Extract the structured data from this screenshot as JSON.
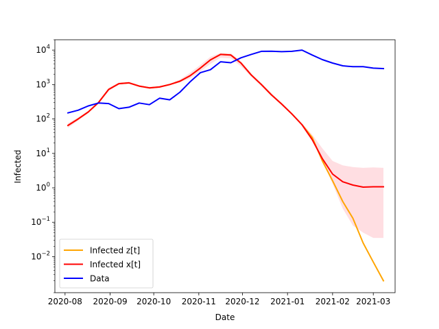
{
  "chart_data": {
    "type": "line",
    "title": "",
    "xlabel": "Date",
    "ylabel": "Infected",
    "yscale": "log",
    "ylim": [
      0.0009,
      20000
    ],
    "xlim": [
      "2020-07-25",
      "2021-03-16"
    ],
    "grid": false,
    "legend_position": "lower-left",
    "x_ticks": [
      {
        "date": "2020-08-01",
        "label": "2020-08"
      },
      {
        "date": "2020-09-01",
        "label": "2020-09"
      },
      {
        "date": "2020-10-01",
        "label": "2020-10"
      },
      {
        "date": "2020-11-01",
        "label": "2020-11"
      },
      {
        "date": "2020-12-01",
        "label": "2020-12"
      },
      {
        "date": "2021-01-01",
        "label": "2021-01"
      },
      {
        "date": "2021-02-01",
        "label": "2021-02"
      },
      {
        "date": "2021-03-01",
        "label": "2021-03"
      }
    ],
    "y_ticks": [
      {
        "value": 0.01,
        "base": "10",
        "exp": "−2"
      },
      {
        "value": 0.1,
        "base": "10",
        "exp": "−1"
      },
      {
        "value": 1,
        "base": "10",
        "exp": "0"
      },
      {
        "value": 10,
        "base": "10",
        "exp": "1"
      },
      {
        "value": 100,
        "base": "10",
        "exp": "2"
      },
      {
        "value": 1000,
        "base": "10",
        "exp": "3"
      },
      {
        "value": 10000,
        "base": "10",
        "exp": "4"
      }
    ],
    "band": {
      "color": "#ffb6bf",
      "opacity": 0.45,
      "x": [
        "2020-08-03",
        "2020-08-10",
        "2020-08-17",
        "2020-08-24",
        "2020-08-31",
        "2020-09-07",
        "2020-09-14",
        "2020-09-21",
        "2020-09-28",
        "2020-10-05",
        "2020-10-12",
        "2020-10-19",
        "2020-10-26",
        "2020-11-02",
        "2020-11-09",
        "2020-11-16",
        "2020-11-23",
        "2020-11-30",
        "2020-12-07",
        "2020-12-14",
        "2020-12-21",
        "2020-12-28",
        "2021-01-04",
        "2021-01-11",
        "2021-01-18",
        "2021-01-25",
        "2021-02-01",
        "2021-02-08",
        "2021-02-15",
        "2021-02-22",
        "2021-03-01",
        "2021-03-08"
      ],
      "lower": [
        55,
        90,
        150,
        280,
        650,
        1000,
        1050,
        850,
        750,
        800,
        950,
        1150,
        1500,
        2400,
        4000,
        6000,
        5800,
        3400,
        1700,
        900,
        470,
        250,
        130,
        65,
        28,
        6,
        1.3,
        0.25,
        0.08,
        0.05,
        0.035,
        0.035
      ],
      "upper": [
        75,
        110,
        175,
        330,
        800,
        1150,
        1200,
        960,
        860,
        900,
        1050,
        1400,
        2200,
        3700,
        6400,
        8300,
        8100,
        4800,
        2100,
        1100,
        560,
        290,
        150,
        75,
        35,
        14,
        6,
        4.5,
        4,
        3.8,
        3.9,
        3.8
      ]
    },
    "series": [
      {
        "name": "Infected z[t]",
        "color": "#ffa500",
        "x": [
          "2020-08-03",
          "2020-08-10",
          "2020-08-17",
          "2020-08-24",
          "2020-08-31",
          "2020-09-07",
          "2020-09-14",
          "2020-09-21",
          "2020-09-28",
          "2020-10-05",
          "2020-10-12",
          "2020-10-19",
          "2020-10-26",
          "2020-11-02",
          "2020-11-09",
          "2020-11-16",
          "2020-11-23",
          "2020-11-30",
          "2020-12-07",
          "2020-12-14",
          "2020-12-21",
          "2020-12-28",
          "2021-01-04",
          "2021-01-11",
          "2021-01-18",
          "2021-01-25",
          "2021-02-01",
          "2021-02-08",
          "2021-02-15",
          "2021-02-22",
          "2021-03-01",
          "2021-03-08"
        ],
        "values": [
          65,
          100,
          160,
          300,
          720,
          1060,
          1120,
          900,
          800,
          850,
          1000,
          1250,
          1800,
          3000,
          5200,
          7500,
          7200,
          4200,
          1900,
          1000,
          500,
          270,
          140,
          68,
          29,
          6,
          1.6,
          0.4,
          0.13,
          0.025,
          0.007,
          0.002
        ]
      },
      {
        "name": "Infected x[t]",
        "color": "#ff0000",
        "x": [
          "2020-08-03",
          "2020-08-10",
          "2020-08-17",
          "2020-08-24",
          "2020-08-31",
          "2020-09-07",
          "2020-09-14",
          "2020-09-21",
          "2020-09-28",
          "2020-10-05",
          "2020-10-12",
          "2020-10-19",
          "2020-10-26",
          "2020-11-02",
          "2020-11-09",
          "2020-11-16",
          "2020-11-23",
          "2020-11-30",
          "2020-12-07",
          "2020-12-14",
          "2020-12-21",
          "2020-12-28",
          "2021-01-04",
          "2021-01-11",
          "2021-01-18",
          "2021-01-25",
          "2021-02-01",
          "2021-02-08",
          "2021-02-15",
          "2021-02-22",
          "2021-03-01",
          "2021-03-08"
        ],
        "values": [
          65,
          100,
          160,
          300,
          720,
          1060,
          1120,
          900,
          800,
          850,
          1000,
          1250,
          1800,
          3000,
          5200,
          7500,
          7200,
          4200,
          1900,
          1000,
          500,
          270,
          140,
          68,
          25,
          7,
          2.5,
          1.5,
          1.2,
          1.05,
          1.07,
          1.07
        ]
      },
      {
        "name": "Data",
        "color": "#0000ff",
        "x": [
          "2020-08-03",
          "2020-08-10",
          "2020-08-17",
          "2020-08-24",
          "2020-08-31",
          "2020-09-07",
          "2020-09-14",
          "2020-09-21",
          "2020-09-28",
          "2020-10-05",
          "2020-10-12",
          "2020-10-19",
          "2020-10-26",
          "2020-11-02",
          "2020-11-09",
          "2020-11-16",
          "2020-11-23",
          "2020-11-30",
          "2020-12-07",
          "2020-12-14",
          "2020-12-21",
          "2020-12-28",
          "2021-01-04",
          "2021-01-11",
          "2021-01-18",
          "2021-01-25",
          "2021-02-01",
          "2021-02-08",
          "2021-02-15",
          "2021-02-22",
          "2021-03-01",
          "2021-03-08"
        ],
        "values": [
          150,
          180,
          240,
          290,
          280,
          200,
          220,
          290,
          260,
          400,
          360,
          600,
          1200,
          2200,
          2700,
          4600,
          4300,
          6000,
          7500,
          9200,
          9300,
          9000,
          9200,
          10000,
          7200,
          5300,
          4200,
          3500,
          3300,
          3300,
          3000,
          2900
        ]
      }
    ],
    "legend": [
      {
        "label": "Infected z[t]",
        "color": "#ffa500"
      },
      {
        "label": "Infected x[t]",
        "color": "#ff0000"
      },
      {
        "label": "Data",
        "color": "#0000ff"
      }
    ]
  }
}
